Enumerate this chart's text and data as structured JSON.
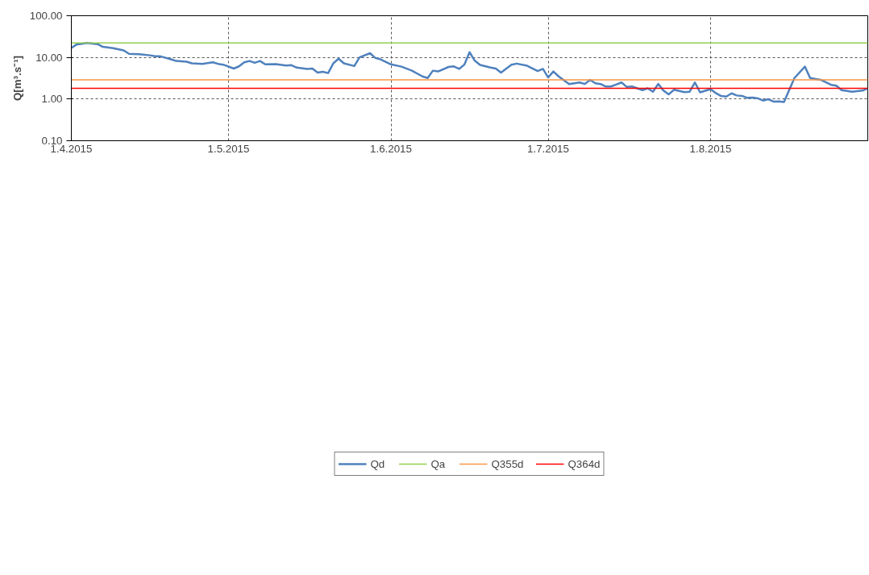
{
  "chart_data": {
    "type": "line",
    "ylabel": "Q[m³.s⁻¹]",
    "log": true,
    "grid": true,
    "legend": "bottom",
    "xlim": [
      "2015-04-01",
      "2015-08-31"
    ],
    "ylim": [
      0.1,
      100
    ],
    "xticks": [
      {
        "value": "2015-04-01",
        "label": "1.4.2015"
      },
      {
        "value": "2015-05-01",
        "label": "1.5.2015"
      },
      {
        "value": "2015-06-01",
        "label": "1.6.2015"
      },
      {
        "value": "2015-07-01",
        "label": "1.7.2015"
      },
      {
        "value": "2015-08-01",
        "label": "1.8.2015"
      }
    ],
    "yticks": [
      {
        "value": 0.1,
        "label": "0.10"
      },
      {
        "value": 1,
        "label": "1.00"
      },
      {
        "value": 10,
        "label": "10.00"
      },
      {
        "value": 100,
        "label": "100.00"
      }
    ],
    "series": [
      {
        "name": "Qd",
        "color": "#4f81bd",
        "x": [
          "2015-04-01",
          "2015-04-02",
          "2015-04-04",
          "2015-04-06",
          "2015-04-07",
          "2015-04-09",
          "2015-04-11",
          "2015-04-12",
          "2015-04-14",
          "2015-04-16",
          "2015-04-17",
          "2015-04-18",
          "2015-04-20",
          "2015-04-21",
          "2015-04-23",
          "2015-04-24",
          "2015-04-26",
          "2015-04-28",
          "2015-04-29",
          "2015-04-30",
          "2015-05-02",
          "2015-05-03",
          "2015-05-04",
          "2015-05-05",
          "2015-05-06",
          "2015-05-07",
          "2015-05-08",
          "2015-05-10",
          "2015-05-12",
          "2015-05-13",
          "2015-05-14",
          "2015-05-16",
          "2015-05-17",
          "2015-05-18",
          "2015-05-19",
          "2015-05-20",
          "2015-05-21",
          "2015-05-22",
          "2015-05-23",
          "2015-05-25",
          "2015-05-26",
          "2015-05-28",
          "2015-05-29",
          "2015-05-30",
          "2015-06-01",
          "2015-06-03",
          "2015-06-05",
          "2015-06-07",
          "2015-06-08",
          "2015-06-09",
          "2015-06-10",
          "2015-06-12",
          "2015-06-13",
          "2015-06-14",
          "2015-06-15",
          "2015-06-16",
          "2015-06-17",
          "2015-06-18",
          "2015-06-20",
          "2015-06-21",
          "2015-06-22",
          "2015-06-24",
          "2015-06-25",
          "2015-06-27",
          "2015-06-29",
          "2015-06-30",
          "2015-07-01",
          "2015-07-02",
          "2015-07-03",
          "2015-07-05",
          "2015-07-07",
          "2015-07-08",
          "2015-07-09",
          "2015-07-10",
          "2015-07-11",
          "2015-07-12",
          "2015-07-13",
          "2015-07-15",
          "2015-07-16",
          "2015-07-17",
          "2015-07-19",
          "2015-07-20",
          "2015-07-21",
          "2015-07-22",
          "2015-07-23",
          "2015-07-24",
          "2015-07-25",
          "2015-07-27",
          "2015-07-28",
          "2015-07-29",
          "2015-07-30",
          "2015-08-01",
          "2015-08-02",
          "2015-08-03",
          "2015-08-04",
          "2015-08-05",
          "2015-08-06",
          "2015-08-07",
          "2015-08-08",
          "2015-08-09",
          "2015-08-10",
          "2015-08-11",
          "2015-08-12",
          "2015-08-13",
          "2015-08-14",
          "2015-08-15",
          "2015-08-17",
          "2015-08-19",
          "2015-08-20",
          "2015-08-22",
          "2015-08-24",
          "2015-08-25",
          "2015-08-26",
          "2015-08-28",
          "2015-08-30",
          "2015-08-31"
        ],
        "values": [
          16.9,
          20.4,
          22.3,
          20.8,
          17.9,
          16.7,
          14.7,
          12.2,
          11.9,
          11.2,
          10.7,
          10.6,
          9.0,
          8.2,
          7.9,
          7.2,
          7.0,
          7.6,
          7.0,
          6.7,
          5.4,
          6.1,
          7.6,
          8.2,
          7.4,
          8.2,
          6.8,
          6.9,
          6.4,
          6.5,
          5.7,
          5.3,
          5.4,
          4.3,
          4.5,
          4.2,
          7.2,
          9.3,
          7.2,
          6.2,
          10.0,
          12.6,
          9.7,
          9.0,
          6.8,
          6.0,
          4.8,
          3.5,
          3.2,
          4.8,
          4.6,
          5.9,
          6.1,
          5.3,
          6.7,
          13.3,
          8.3,
          6.6,
          5.7,
          5.4,
          4.3,
          6.7,
          7.1,
          6.3,
          4.7,
          5.3,
          3.3,
          4.6,
          3.5,
          2.3,
          2.5,
          2.3,
          2.9,
          2.4,
          2.3,
          2.0,
          2.0,
          2.5,
          1.95,
          2.0,
          1.64,
          1.81,
          1.5,
          2.3,
          1.6,
          1.3,
          1.67,
          1.47,
          1.5,
          2.5,
          1.45,
          1.73,
          1.39,
          1.18,
          1.15,
          1.37,
          1.22,
          1.19,
          1.07,
          1.09,
          1.04,
          0.92,
          0.99,
          0.87,
          0.88,
          0.85,
          3.2,
          6.0,
          3.2,
          2.9,
          2.2,
          2.1,
          1.64,
          1.5,
          1.6,
          1.8
        ]
      },
      {
        "name": "Qa",
        "color": "#92d050",
        "x": [
          "2015-04-01",
          "2015-08-31"
        ],
        "values": [
          22.3,
          22.3
        ]
      },
      {
        "name": "Q355d",
        "color": "#f79646",
        "x": [
          "2015-04-01",
          "2015-08-31"
        ],
        "values": [
          2.9,
          2.9
        ]
      },
      {
        "name": "Q364d",
        "color": "#ff0000",
        "x": [
          "2015-04-01",
          "2015-08-31"
        ],
        "values": [
          1.81,
          1.81
        ]
      }
    ]
  }
}
